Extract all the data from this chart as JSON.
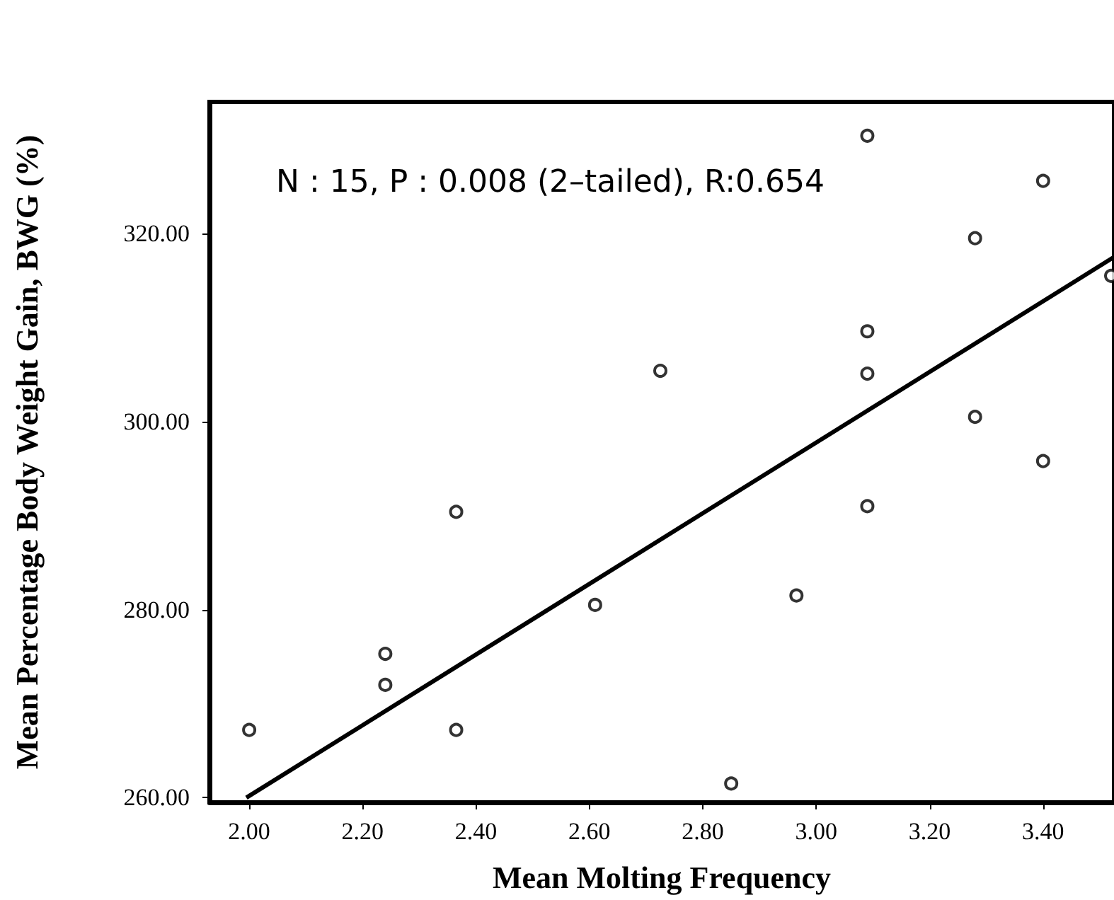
{
  "chart_data": {
    "type": "scatter",
    "xlabel": "Mean Molting Frequency",
    "ylabel": "Mean Percentage Body Weight Gain, BWG (%)",
    "annotations": [
      "N : 15, P : 0.008 (2–tailed), R:0.654"
    ],
    "xlim": [
      1.93,
      3.525
    ],
    "ylim": [
      259.5,
      334
    ],
    "xticks": [
      {
        "value": 2,
        "label": "2.00"
      },
      {
        "value": 2.2,
        "label": "2.20"
      },
      {
        "value": 2.4,
        "label": "2.40"
      },
      {
        "value": 2.6,
        "label": "2.60"
      },
      {
        "value": 2.8,
        "label": "2.80"
      },
      {
        "value": 3,
        "label": "3.00"
      },
      {
        "value": 3.2,
        "label": "3.20"
      },
      {
        "value": 3.4,
        "label": "3.40"
      }
    ],
    "yticks": [
      {
        "value": 260,
        "label": "260.00"
      },
      {
        "value": 280,
        "label": "280.00"
      },
      {
        "value": 300,
        "label": "300.00"
      },
      {
        "value": 320,
        "label": "320.00"
      }
    ],
    "grid": false,
    "series": [
      {
        "color": "#000000",
        "marker": "circle",
        "x": [
          2.0,
          2.24,
          2.24,
          2.365,
          2.365,
          2.61,
          2.725,
          2.85,
          2.965,
          3.09,
          3.09,
          3.09,
          3.09,
          3.28,
          3.28,
          3.4,
          3.4,
          3.52
        ],
        "values": [
          267.2,
          275.3,
          272,
          290.4,
          267.2,
          280.5,
          305.4,
          261.5,
          281.5,
          330.4,
          309.6,
          305.1,
          291,
          319.5,
          300.5,
          325.6,
          295.8,
          315.5
        ]
      },
      {
        "type": "line",
        "color": "#000000",
        "x": [
          1.995,
          3.525
        ],
        "values": [
          260,
          317.5
        ],
        "line_style": "solid"
      }
    ]
  }
}
